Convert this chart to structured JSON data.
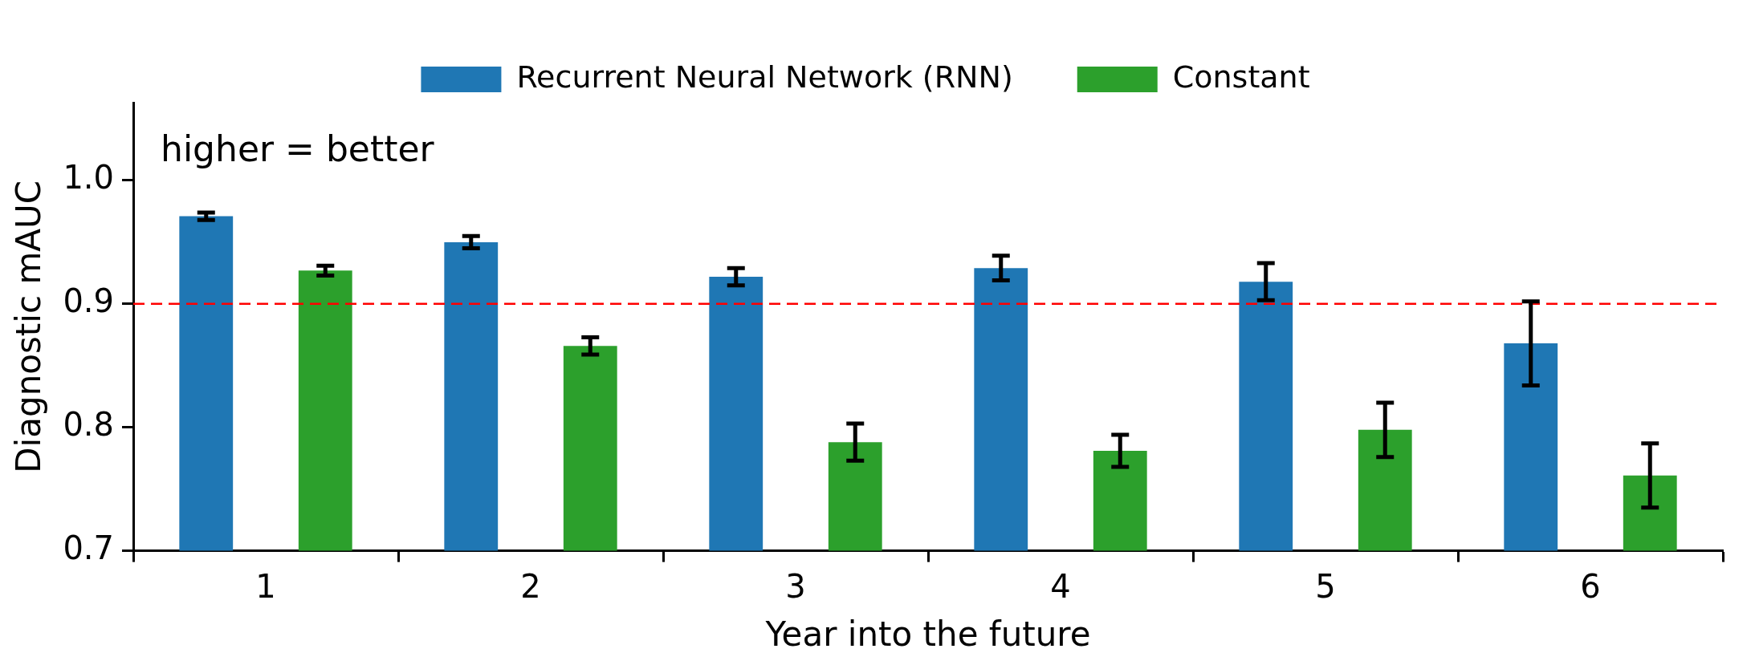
{
  "chart_data": {
    "type": "bar",
    "xlabel": "Year into the future",
    "ylabel": "Diagnostic mAUC",
    "categories": [
      "1",
      "2",
      "3",
      "4",
      "5",
      "6"
    ],
    "series": [
      {
        "name": "Recurrent Neural Network (RNN)",
        "color": "#1f77b4",
        "values": [
          0.971,
          0.95,
          0.922,
          0.929,
          0.918,
          0.868
        ],
        "errors": [
          0.003,
          0.005,
          0.007,
          0.01,
          0.015,
          0.034
        ]
      },
      {
        "name": "Constant",
        "color": "#2ca02c",
        "values": [
          0.927,
          0.866,
          0.788,
          0.781,
          0.798,
          0.761
        ],
        "errors": [
          0.004,
          0.007,
          0.015,
          0.013,
          0.022,
          0.026
        ]
      }
    ],
    "ylim": [
      0.7,
      1.063
    ],
    "yticks": [
      0.7,
      0.8,
      0.9,
      {
        "value": 1,
        "label": "1.0"
      }
    ],
    "ref_lines": [
      {
        "axis": "y",
        "value": 0.9,
        "color": "#ff0000",
        "line_style": "dashed"
      }
    ],
    "annotations": [
      "higher = better"
    ],
    "legend": "top",
    "grid": false
  }
}
